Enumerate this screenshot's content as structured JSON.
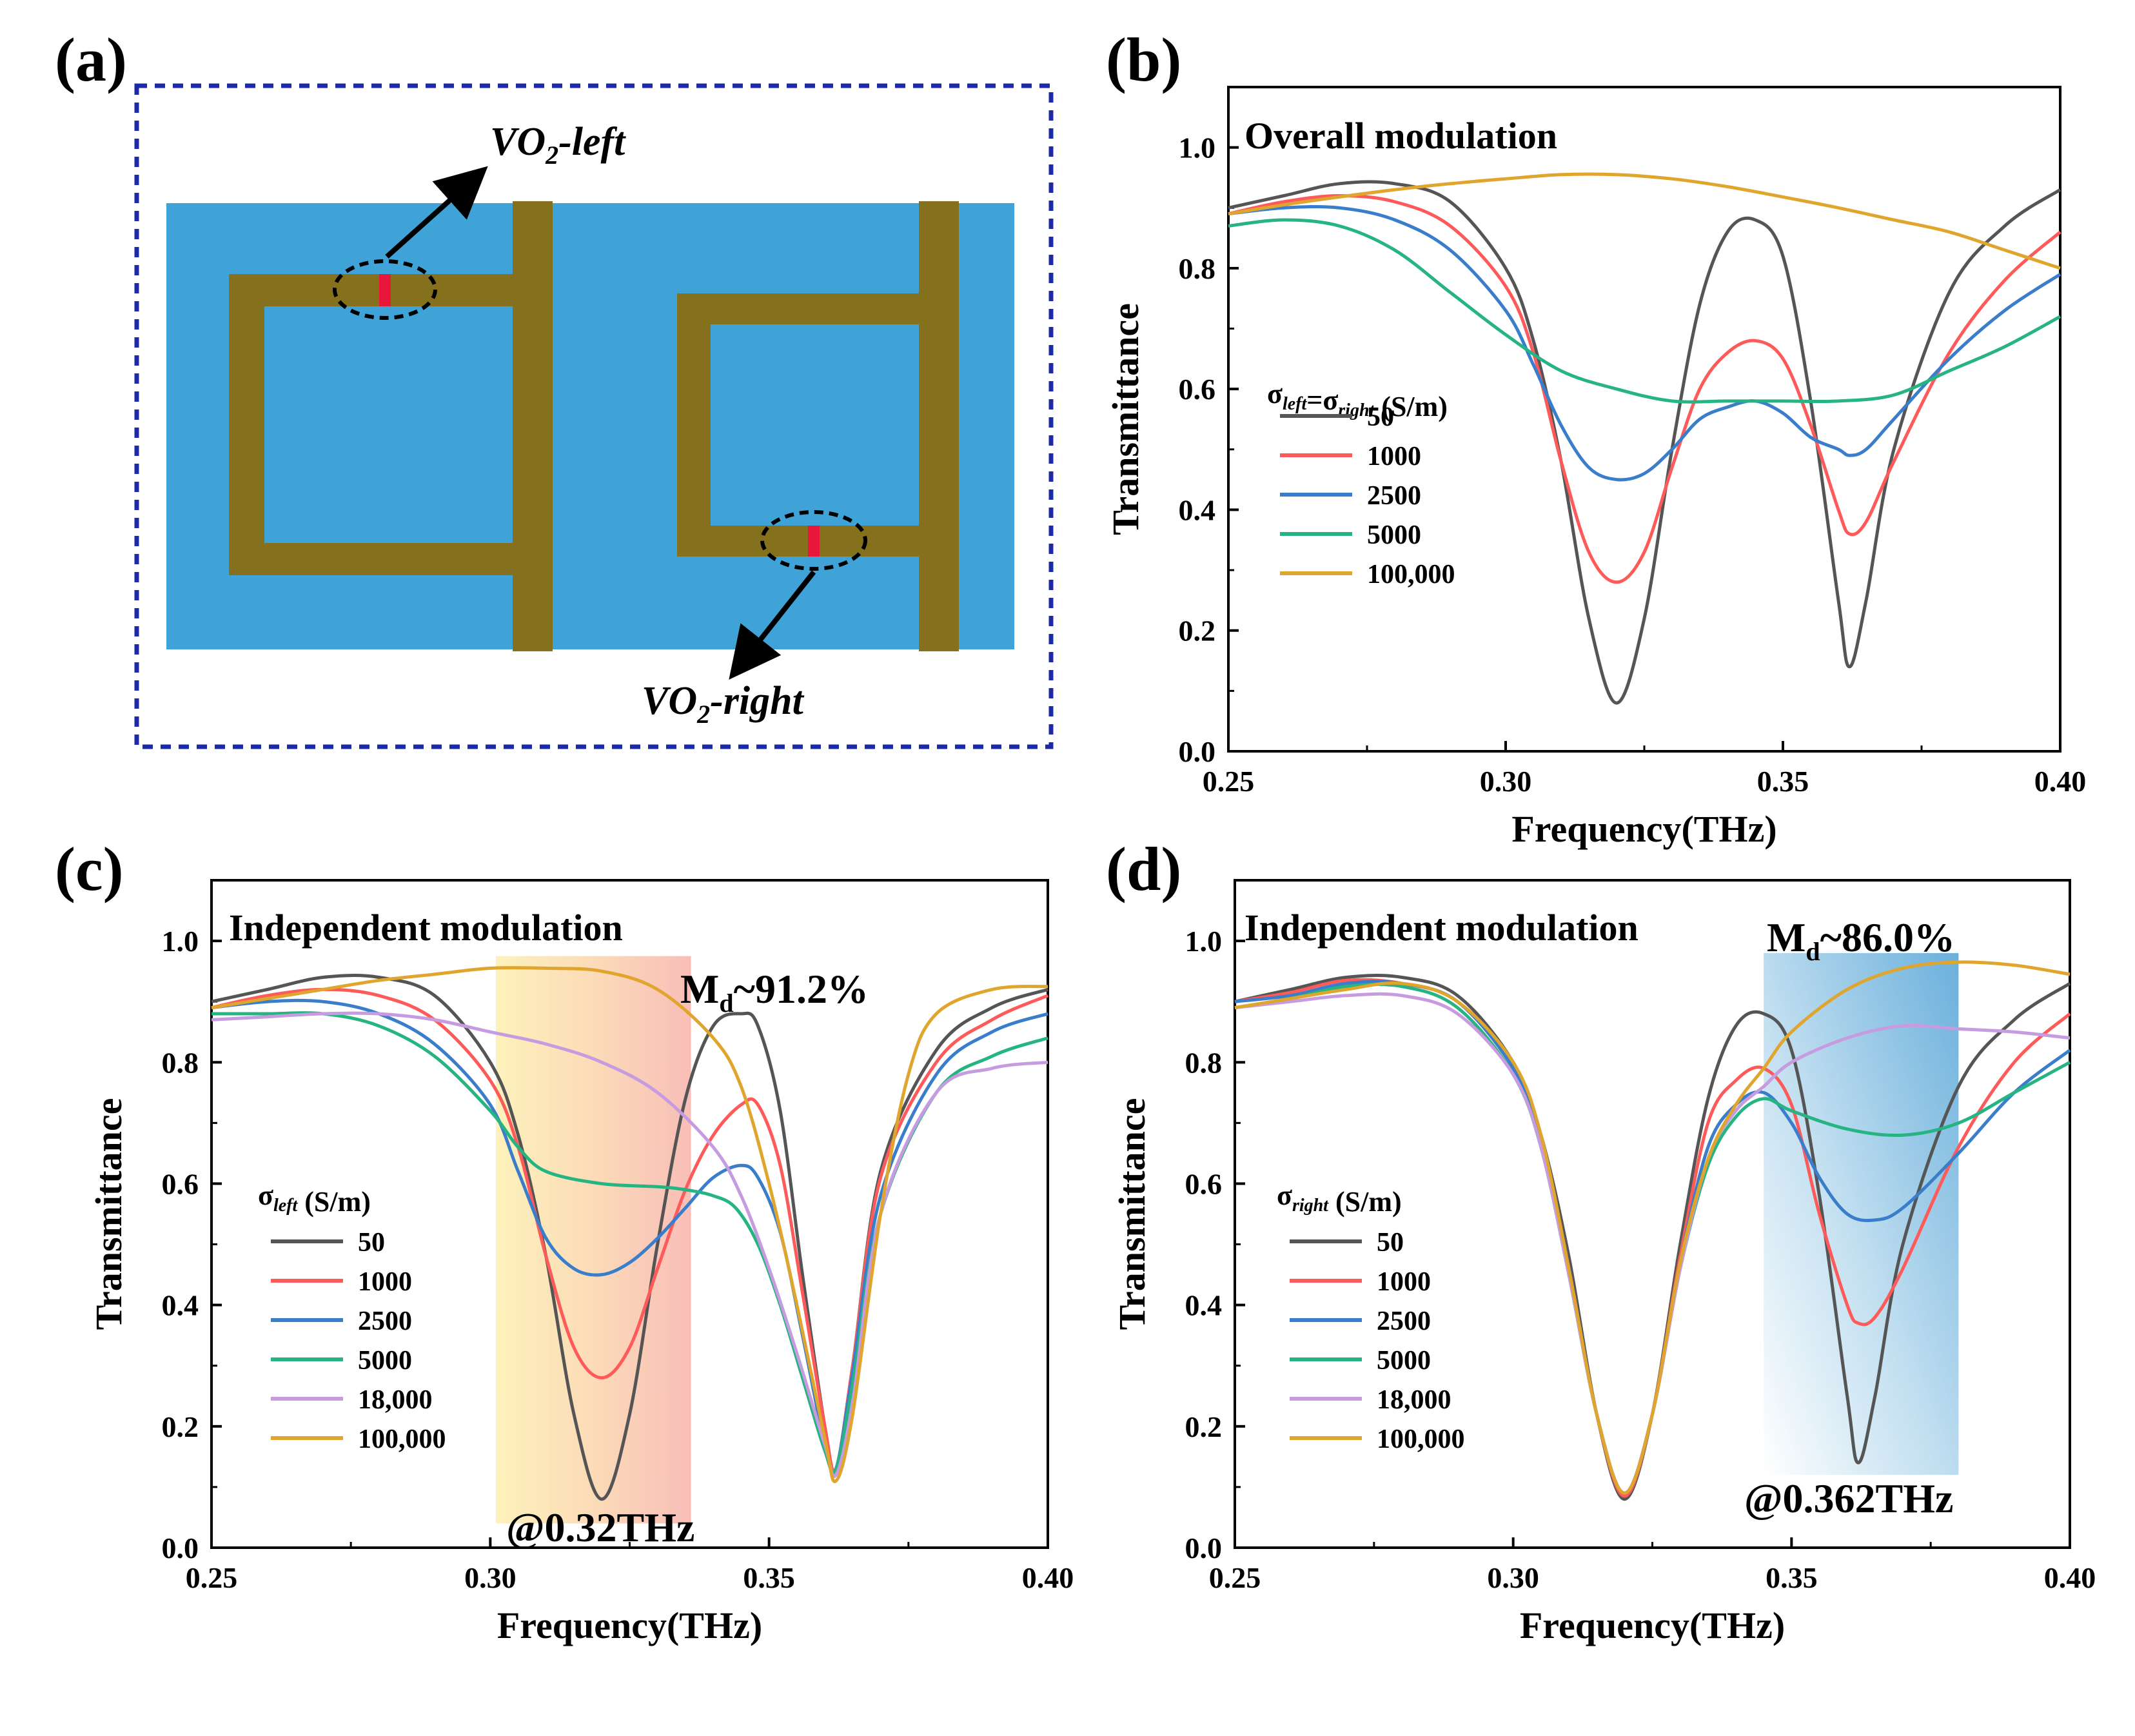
{
  "panels": {
    "a": {
      "label": "(a)",
      "vo2_left": "VO2-left",
      "vo2_right": "VO2-right"
    },
    "b": {
      "label": "(b)"
    },
    "c": {
      "label": "(c)"
    },
    "d": {
      "label": "(d)"
    }
  },
  "colors": {
    "s50": "#555555",
    "s1000": "#ff5a5a",
    "s2500": "#3a7ecb",
    "s5000": "#27b483",
    "s18000": "#c79be0",
    "s100000": "#e0a52c",
    "substrate": "#3fa3d8",
    "metal": "#85701d",
    "vo2": "#e8173a",
    "frame": "#1c2aa8"
  },
  "chart_data": [
    {
      "panel": "b",
      "type": "line",
      "title": "Overall modulation",
      "xlabel": "Frequency(THz)",
      "ylabel": "Transmittance",
      "xlim": [
        0.25,
        0.4
      ],
      "ylim": [
        0.0,
        1.1
      ],
      "xticks": [
        0.25,
        0.3,
        0.35,
        0.4
      ],
      "xtick_labels": [
        "0.25",
        "0.30",
        "0.35",
        "0.40"
      ],
      "yticks": [
        0.0,
        0.2,
        0.4,
        0.6,
        0.8,
        1.0
      ],
      "ytick_labels": [
        "0.0",
        "0.2",
        "0.4",
        "0.6",
        "0.8",
        "1.0"
      ],
      "legend_title": "σleft=σright (S/m)",
      "series": [
        {
          "name": "50",
          "color_key": "s50",
          "x": [
            0.25,
            0.26,
            0.27,
            0.28,
            0.29,
            0.3,
            0.305,
            0.31,
            0.315,
            0.32,
            0.325,
            0.33,
            0.335,
            0.34,
            0.345,
            0.35,
            0.355,
            0.36,
            0.362,
            0.365,
            0.37,
            0.38,
            0.39,
            0.4
          ],
          "y": [
            0.9,
            0.92,
            0.94,
            0.94,
            0.91,
            0.8,
            0.68,
            0.48,
            0.22,
            0.08,
            0.22,
            0.5,
            0.74,
            0.86,
            0.88,
            0.82,
            0.58,
            0.25,
            0.14,
            0.25,
            0.5,
            0.76,
            0.87,
            0.93
          ]
        },
        {
          "name": "1000",
          "color_key": "s1000",
          "x": [
            0.25,
            0.26,
            0.27,
            0.28,
            0.29,
            0.3,
            0.305,
            0.31,
            0.315,
            0.32,
            0.325,
            0.33,
            0.335,
            0.34,
            0.345,
            0.35,
            0.355,
            0.36,
            0.362,
            0.365,
            0.37,
            0.38,
            0.39,
            0.4
          ],
          "y": [
            0.89,
            0.91,
            0.92,
            0.91,
            0.87,
            0.77,
            0.66,
            0.48,
            0.33,
            0.28,
            0.33,
            0.47,
            0.6,
            0.66,
            0.68,
            0.65,
            0.54,
            0.4,
            0.36,
            0.38,
            0.48,
            0.66,
            0.78,
            0.86
          ]
        },
        {
          "name": "2500",
          "color_key": "s2500",
          "x": [
            0.25,
            0.26,
            0.27,
            0.28,
            0.29,
            0.3,
            0.305,
            0.31,
            0.315,
            0.32,
            0.325,
            0.33,
            0.335,
            0.34,
            0.345,
            0.35,
            0.355,
            0.36,
            0.362,
            0.365,
            0.37,
            0.38,
            0.39,
            0.4
          ],
          "y": [
            0.89,
            0.9,
            0.9,
            0.88,
            0.83,
            0.73,
            0.64,
            0.54,
            0.47,
            0.45,
            0.46,
            0.5,
            0.55,
            0.57,
            0.58,
            0.56,
            0.52,
            0.5,
            0.49,
            0.5,
            0.55,
            0.65,
            0.73,
            0.79
          ]
        },
        {
          "name": "5000",
          "color_key": "s5000",
          "x": [
            0.25,
            0.26,
            0.27,
            0.28,
            0.29,
            0.3,
            0.31,
            0.32,
            0.33,
            0.34,
            0.35,
            0.36,
            0.37,
            0.38,
            0.39,
            0.4
          ],
          "y": [
            0.87,
            0.88,
            0.87,
            0.83,
            0.76,
            0.69,
            0.63,
            0.6,
            0.58,
            0.58,
            0.58,
            0.58,
            0.59,
            0.63,
            0.67,
            0.72
          ]
        },
        {
          "name": "100,000",
          "color_key": "s100000",
          "x": [
            0.25,
            0.26,
            0.27,
            0.28,
            0.29,
            0.3,
            0.31,
            0.32,
            0.33,
            0.34,
            0.35,
            0.36,
            0.37,
            0.38,
            0.39,
            0.4
          ],
          "y": [
            0.89,
            0.905,
            0.918,
            0.93,
            0.94,
            0.948,
            0.955,
            0.955,
            0.948,
            0.935,
            0.918,
            0.9,
            0.88,
            0.86,
            0.83,
            0.8
          ]
        }
      ]
    },
    {
      "panel": "c",
      "type": "line",
      "title": "Independent modulation",
      "annotation_md": "Md~91.2%",
      "annotation_freq": "@0.32THz",
      "highlight_x": [
        0.301,
        0.336
      ],
      "xlabel": "Frequency(THz)",
      "ylabel": "Transmittance",
      "xlim": [
        0.25,
        0.4
      ],
      "ylim": [
        0.0,
        1.1
      ],
      "xticks": [
        0.25,
        0.3,
        0.35,
        0.4
      ],
      "xtick_labels": [
        "0.25",
        "0.30",
        "0.35",
        "0.40"
      ],
      "yticks": [
        0.0,
        0.2,
        0.4,
        0.6,
        0.8,
        1.0
      ],
      "ytick_labels": [
        "0.0",
        "0.2",
        "0.4",
        "0.6",
        "0.8",
        "1.0"
      ],
      "legend_title": "σleft (S/m)",
      "series": [
        {
          "name": "50",
          "color_key": "s50",
          "x": [
            0.25,
            0.26,
            0.27,
            0.28,
            0.29,
            0.3,
            0.305,
            0.31,
            0.315,
            0.32,
            0.325,
            0.33,
            0.335,
            0.34,
            0.345,
            0.348,
            0.352,
            0.356,
            0.36,
            0.362,
            0.365,
            0.37,
            0.38,
            0.39,
            0.4
          ],
          "y": [
            0.9,
            0.92,
            0.94,
            0.94,
            0.91,
            0.8,
            0.68,
            0.48,
            0.22,
            0.08,
            0.22,
            0.5,
            0.74,
            0.86,
            0.88,
            0.86,
            0.72,
            0.45,
            0.2,
            0.13,
            0.3,
            0.62,
            0.82,
            0.89,
            0.92
          ]
        },
        {
          "name": "1000",
          "color_key": "s1000",
          "x": [
            0.25,
            0.26,
            0.27,
            0.28,
            0.29,
            0.3,
            0.305,
            0.31,
            0.315,
            0.32,
            0.325,
            0.33,
            0.335,
            0.34,
            0.345,
            0.348,
            0.352,
            0.356,
            0.36,
            0.362,
            0.365,
            0.37,
            0.38,
            0.39,
            0.4
          ],
          "y": [
            0.89,
            0.91,
            0.92,
            0.91,
            0.87,
            0.77,
            0.66,
            0.48,
            0.33,
            0.28,
            0.33,
            0.46,
            0.59,
            0.68,
            0.73,
            0.73,
            0.63,
            0.42,
            0.2,
            0.13,
            0.3,
            0.61,
            0.8,
            0.87,
            0.91
          ]
        },
        {
          "name": "2500",
          "color_key": "s2500",
          "x": [
            0.25,
            0.26,
            0.27,
            0.28,
            0.29,
            0.3,
            0.305,
            0.31,
            0.315,
            0.32,
            0.325,
            0.33,
            0.335,
            0.34,
            0.345,
            0.348,
            0.352,
            0.356,
            0.36,
            0.362,
            0.365,
            0.37,
            0.38,
            0.39,
            0.4
          ],
          "y": [
            0.89,
            0.9,
            0.9,
            0.88,
            0.83,
            0.73,
            0.62,
            0.51,
            0.46,
            0.45,
            0.47,
            0.51,
            0.56,
            0.61,
            0.63,
            0.61,
            0.52,
            0.35,
            0.17,
            0.13,
            0.29,
            0.58,
            0.78,
            0.85,
            0.88
          ]
        },
        {
          "name": "5000",
          "color_key": "s5000",
          "x": [
            0.25,
            0.26,
            0.27,
            0.28,
            0.29,
            0.3,
            0.305,
            0.31,
            0.32,
            0.33,
            0.335,
            0.34,
            0.344,
            0.348,
            0.352,
            0.356,
            0.36,
            0.362,
            0.365,
            0.37,
            0.38,
            0.39,
            0.4
          ],
          "y": [
            0.88,
            0.88,
            0.88,
            0.86,
            0.81,
            0.72,
            0.66,
            0.62,
            0.6,
            0.595,
            0.59,
            0.58,
            0.56,
            0.5,
            0.4,
            0.28,
            0.16,
            0.13,
            0.27,
            0.55,
            0.75,
            0.81,
            0.84
          ]
        },
        {
          "name": "18,000",
          "color_key": "s18000",
          "x": [
            0.25,
            0.26,
            0.27,
            0.28,
            0.29,
            0.3,
            0.31,
            0.32,
            0.33,
            0.34,
            0.345,
            0.35,
            0.355,
            0.36,
            0.362,
            0.365,
            0.37,
            0.38,
            0.39,
            0.4
          ],
          "y": [
            0.87,
            0.875,
            0.88,
            0.88,
            0.87,
            0.85,
            0.83,
            0.8,
            0.75,
            0.66,
            0.58,
            0.46,
            0.32,
            0.17,
            0.12,
            0.24,
            0.55,
            0.75,
            0.79,
            0.8
          ]
        },
        {
          "name": "100,000",
          "color_key": "s100000",
          "x": [
            0.25,
            0.26,
            0.27,
            0.28,
            0.29,
            0.3,
            0.31,
            0.32,
            0.33,
            0.34,
            0.345,
            0.35,
            0.355,
            0.36,
            0.362,
            0.365,
            0.37,
            0.375,
            0.38,
            0.39,
            0.4
          ],
          "y": [
            0.89,
            0.905,
            0.92,
            0.935,
            0.945,
            0.955,
            0.955,
            0.95,
            0.92,
            0.84,
            0.76,
            0.6,
            0.4,
            0.18,
            0.11,
            0.22,
            0.55,
            0.78,
            0.88,
            0.92,
            0.925
          ]
        }
      ]
    },
    {
      "panel": "d",
      "type": "line",
      "title": "Independent modulation",
      "annotation_md": "Md~86.0%",
      "annotation_freq": "@0.362THz",
      "highlight_x": [
        0.345,
        0.38
      ],
      "xlabel": "Frequency(THz)",
      "ylabel": "Transmittance",
      "xlim": [
        0.25,
        0.4
      ],
      "ylim": [
        0.0,
        1.1
      ],
      "xticks": [
        0.25,
        0.3,
        0.35,
        0.4
      ],
      "xtick_labels": [
        "0.25",
        "0.30",
        "0.35",
        "0.40"
      ],
      "yticks": [
        0.0,
        0.2,
        0.4,
        0.6,
        0.8,
        1.0
      ],
      "ytick_labels": [
        "0.0",
        "0.2",
        "0.4",
        "0.6",
        "0.8",
        "1.0"
      ],
      "legend_title": "σright (S/m)",
      "series": [
        {
          "name": "50",
          "color_key": "s50",
          "x": [
            0.25,
            0.26,
            0.27,
            0.28,
            0.29,
            0.3,
            0.305,
            0.31,
            0.315,
            0.32,
            0.325,
            0.33,
            0.335,
            0.34,
            0.345,
            0.35,
            0.355,
            0.36,
            0.362,
            0.365,
            0.37,
            0.38,
            0.39,
            0.4
          ],
          "y": [
            0.9,
            0.92,
            0.94,
            0.94,
            0.91,
            0.8,
            0.68,
            0.48,
            0.22,
            0.08,
            0.22,
            0.5,
            0.74,
            0.86,
            0.88,
            0.82,
            0.58,
            0.25,
            0.14,
            0.25,
            0.5,
            0.76,
            0.87,
            0.93
          ]
        },
        {
          "name": "1000",
          "color_key": "s1000",
          "x": [
            0.25,
            0.26,
            0.27,
            0.28,
            0.29,
            0.3,
            0.305,
            0.31,
            0.315,
            0.32,
            0.325,
            0.33,
            0.335,
            0.34,
            0.345,
            0.35,
            0.355,
            0.36,
            0.362,
            0.365,
            0.37,
            0.38,
            0.39,
            0.4
          ],
          "y": [
            0.9,
            0.915,
            0.935,
            0.93,
            0.9,
            0.79,
            0.67,
            0.46,
            0.22,
            0.085,
            0.22,
            0.48,
            0.7,
            0.77,
            0.79,
            0.73,
            0.55,
            0.4,
            0.37,
            0.38,
            0.46,
            0.66,
            0.8,
            0.88
          ]
        },
        {
          "name": "2500",
          "color_key": "s2500",
          "x": [
            0.25,
            0.26,
            0.27,
            0.28,
            0.29,
            0.3,
            0.305,
            0.31,
            0.315,
            0.32,
            0.325,
            0.33,
            0.335,
            0.34,
            0.345,
            0.35,
            0.355,
            0.36,
            0.365,
            0.37,
            0.38,
            0.39,
            0.4
          ],
          "y": [
            0.9,
            0.91,
            0.93,
            0.93,
            0.9,
            0.79,
            0.67,
            0.46,
            0.22,
            0.09,
            0.22,
            0.47,
            0.66,
            0.73,
            0.75,
            0.7,
            0.61,
            0.55,
            0.54,
            0.56,
            0.65,
            0.75,
            0.82
          ]
        },
        {
          "name": "5000",
          "color_key": "s5000",
          "x": [
            0.25,
            0.26,
            0.27,
            0.28,
            0.29,
            0.3,
            0.305,
            0.31,
            0.315,
            0.32,
            0.325,
            0.33,
            0.335,
            0.34,
            0.345,
            0.35,
            0.36,
            0.37,
            0.38,
            0.39,
            0.4
          ],
          "y": [
            0.89,
            0.905,
            0.925,
            0.925,
            0.89,
            0.78,
            0.66,
            0.45,
            0.22,
            0.09,
            0.22,
            0.46,
            0.63,
            0.71,
            0.74,
            0.72,
            0.69,
            0.68,
            0.7,
            0.75,
            0.8
          ]
        },
        {
          "name": "18,000",
          "color_key": "s18000",
          "x": [
            0.25,
            0.26,
            0.27,
            0.28,
            0.29,
            0.3,
            0.305,
            0.31,
            0.315,
            0.32,
            0.325,
            0.33,
            0.335,
            0.34,
            0.345,
            0.35,
            0.36,
            0.37,
            0.38,
            0.39,
            0.4
          ],
          "y": [
            0.89,
            0.9,
            0.91,
            0.91,
            0.88,
            0.78,
            0.66,
            0.45,
            0.22,
            0.09,
            0.22,
            0.46,
            0.64,
            0.72,
            0.76,
            0.8,
            0.84,
            0.86,
            0.855,
            0.85,
            0.84
          ]
        },
        {
          "name": "100,000",
          "color_key": "s100000",
          "x": [
            0.25,
            0.26,
            0.27,
            0.28,
            0.29,
            0.3,
            0.305,
            0.31,
            0.315,
            0.32,
            0.325,
            0.33,
            0.335,
            0.34,
            0.345,
            0.35,
            0.36,
            0.37,
            0.38,
            0.39,
            0.4
          ],
          "y": [
            0.89,
            0.905,
            0.92,
            0.93,
            0.9,
            0.8,
            0.68,
            0.46,
            0.22,
            0.09,
            0.22,
            0.47,
            0.64,
            0.73,
            0.79,
            0.85,
            0.92,
            0.955,
            0.965,
            0.96,
            0.945
          ]
        }
      ]
    }
  ]
}
